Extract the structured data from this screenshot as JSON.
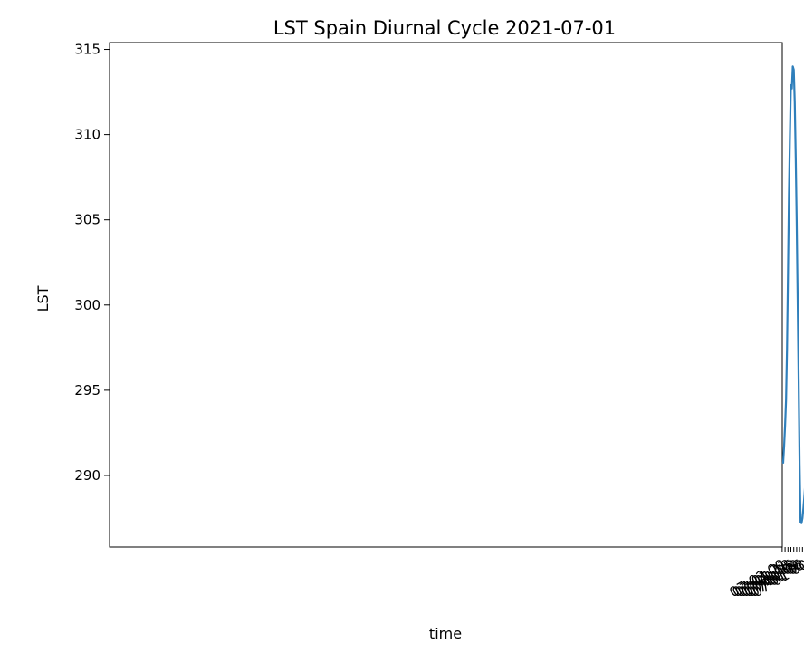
{
  "chart_data": {
    "type": "line",
    "title": "LST Spain Diurnal Cycle 2021-07-01",
    "xlabel": "time",
    "ylabel": "LST",
    "x": [
      "07-01 00",
      "07-01 01",
      "07-01 02",
      "07-01 03",
      "07-01 04",
      "07-01 05",
      "07-01 06",
      "07-01 07",
      "07-01 08",
      "07-01 09",
      "07-01 10",
      "07-01 11",
      "07-01 12",
      "07-01 13",
      "07-01 14",
      "07-01 15",
      "07-01 16",
      "07-01 17",
      "07-01 18",
      "07-01 19",
      "07-01 20",
      "07-01 21",
      "07-01 22",
      "07-01 23"
    ],
    "series": [
      {
        "values": [
          289.6,
          288.8,
          288.1,
          287.5,
          287.2,
          287.25,
          290.7,
          295.7,
          300.4,
          304.9,
          308.7,
          311.9,
          313.8,
          314.0,
          312.7,
          312.9,
          309.9,
          306.5,
          301.8,
          297.4,
          294.4,
          292.9,
          291.7,
          290.7
        ]
      }
    ],
    "ylim": [
      285.8,
      315.4
    ],
    "xlim": [
      "06-30 22:55",
      "07-01 23:53"
    ],
    "x_ticks": [
      "07-01 00",
      "07-01 03",
      "07-01 06",
      "07-01 09",
      "07-01 12",
      "07-01 15",
      "07-01 18",
      "07-01 21",
      "07-02 00"
    ],
    "y_ticks": [
      290,
      295,
      300,
      305,
      310,
      315
    ],
    "grid": false,
    "line_color": "#2f7fbb"
  }
}
